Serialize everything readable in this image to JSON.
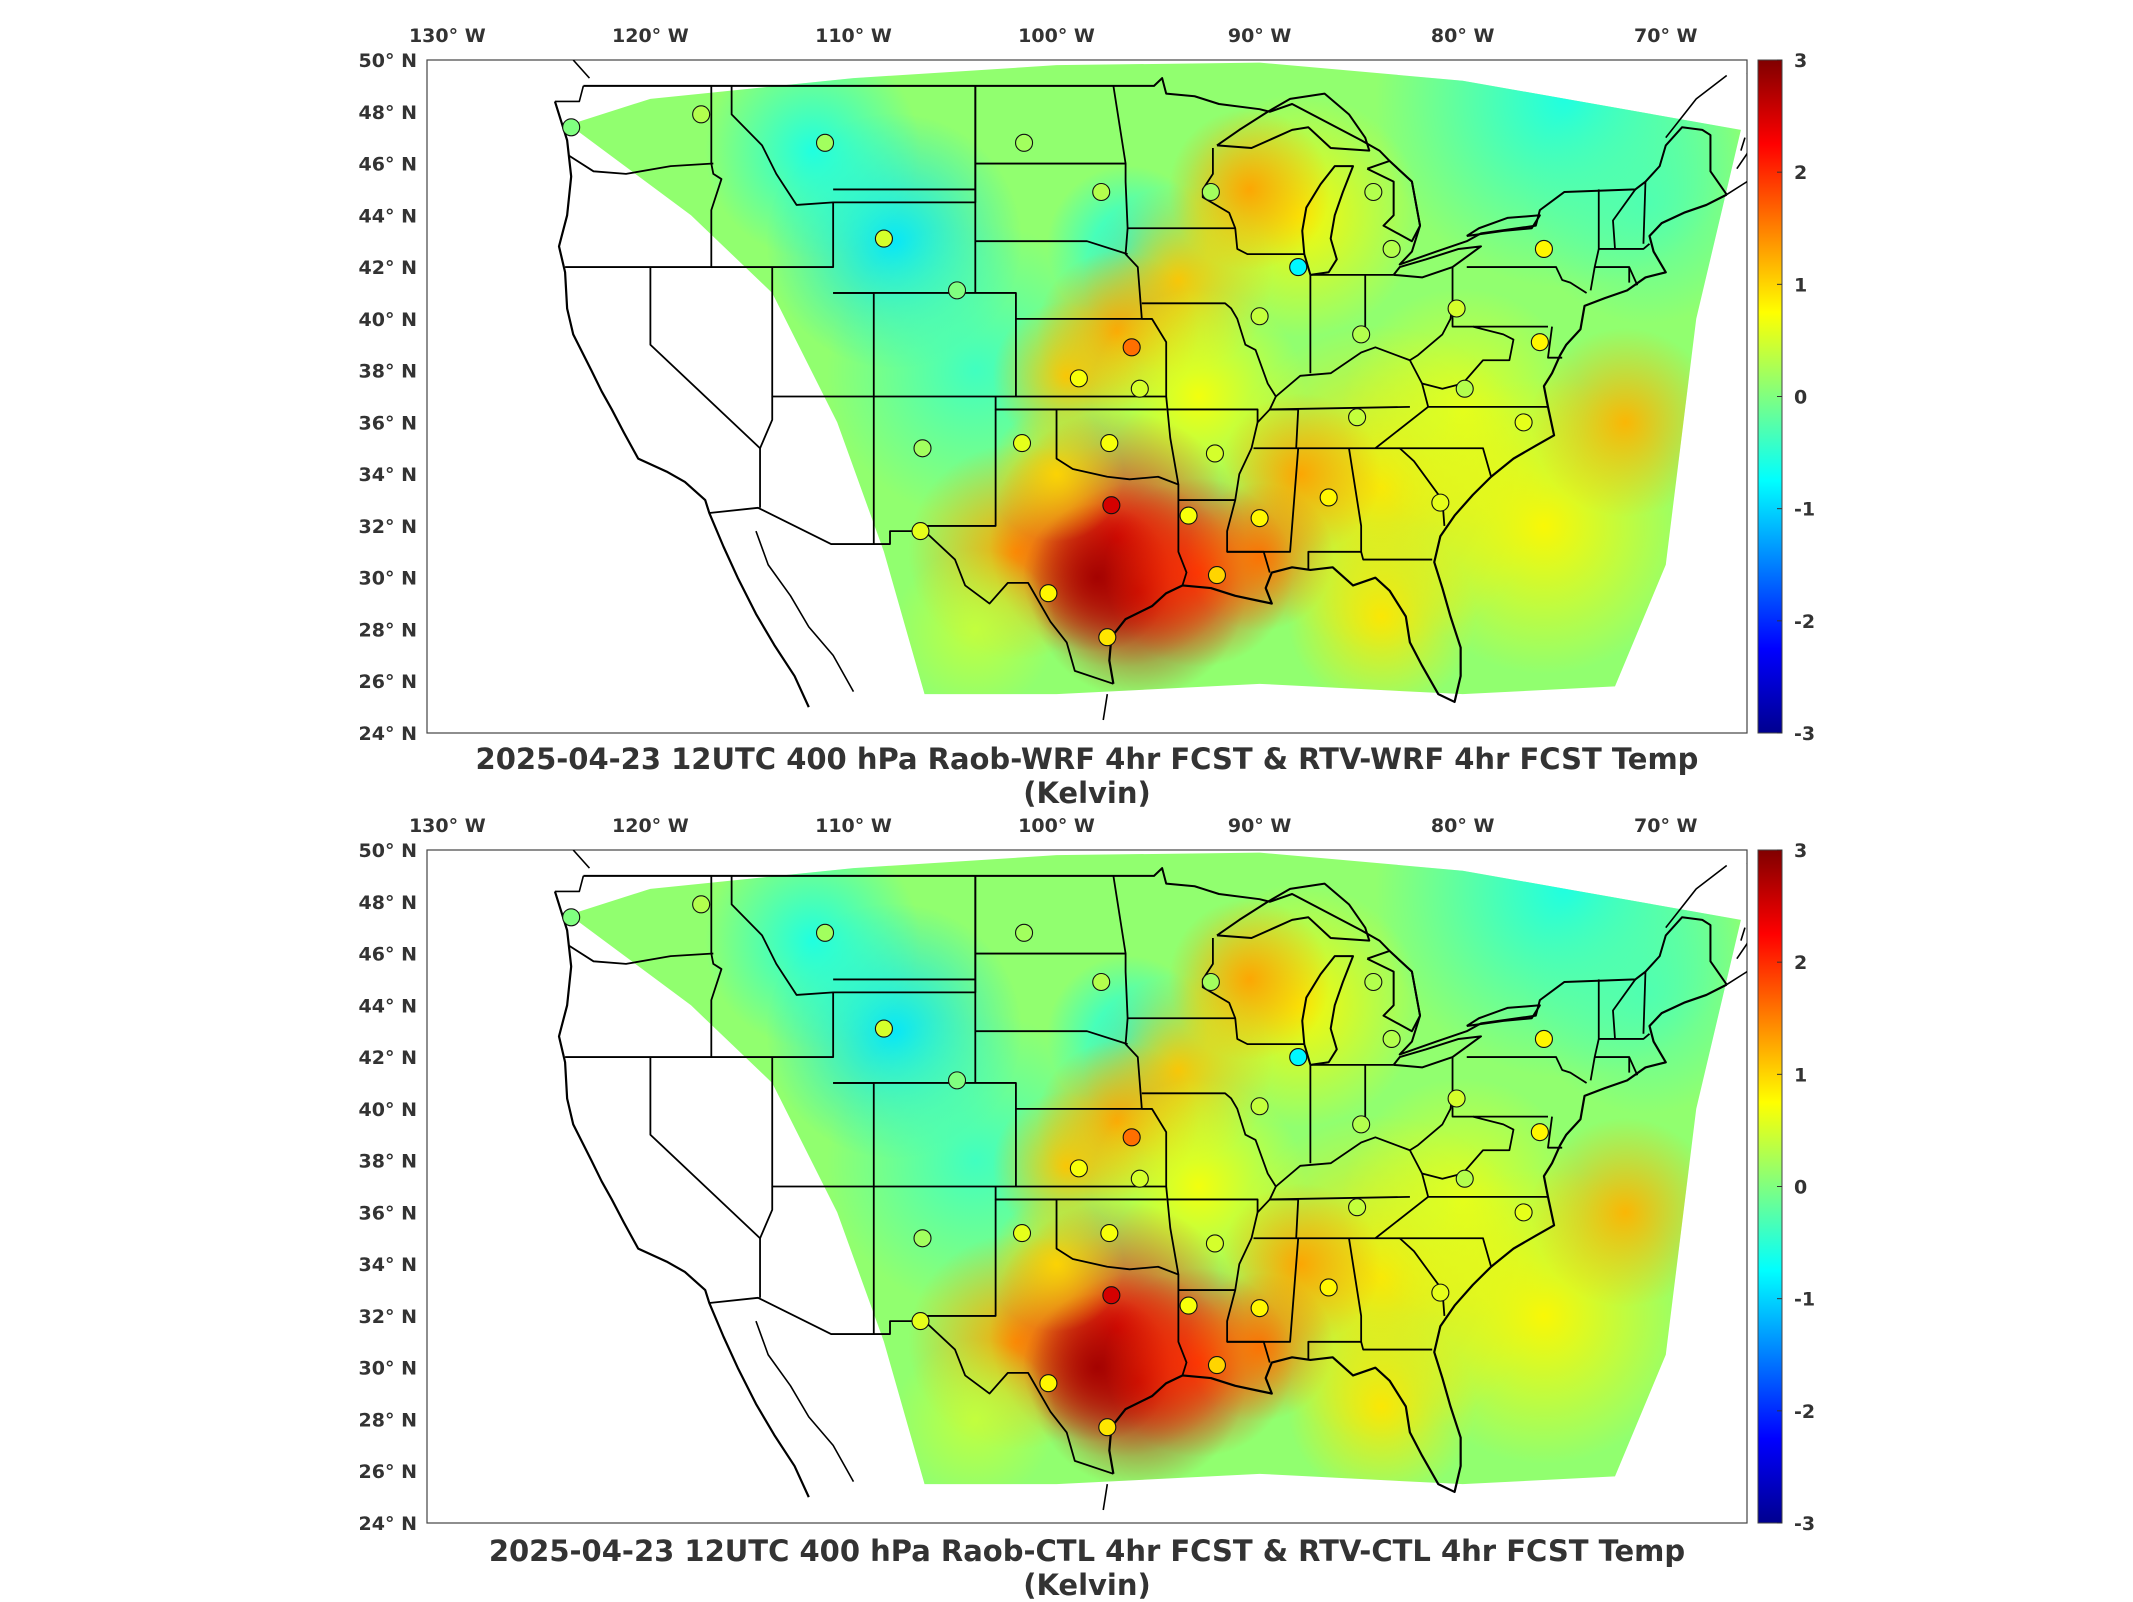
{
  "panels": [
    {
      "title": "2025-04-23 12UTC 400 hPa Raob-WRF 4hr FCST & RTV-WRF 4hr FCST Temp (Kelvin)"
    },
    {
      "title": "2025-04-23 12UTC 400 hPa Raob-CTL 4hr FCST & RTV-CTL 4hr FCST Temp (Kelvin)"
    }
  ],
  "longitude_labels": [
    "130",
    "120",
    "110",
    "100",
    "90",
    "80",
    "70"
  ],
  "longitude_values": [
    -130,
    -120,
    -110,
    -100,
    -90,
    -80,
    -70
  ],
  "longitude_suffix": "W",
  "latitude_labels": [
    "50",
    "48",
    "46",
    "44",
    "42",
    "40",
    "38",
    "36",
    "34",
    "32",
    "30",
    "28",
    "26",
    "24"
  ],
  "latitude_values": [
    50,
    48,
    46,
    44,
    42,
    40,
    38,
    36,
    34,
    32,
    30,
    28,
    26,
    24
  ],
  "latitude_suffix": "N",
  "colorbar": {
    "labels": [
      "3",
      "2",
      "1",
      "0",
      "-1",
      "-2",
      "-3"
    ],
    "values": [
      3,
      2,
      1,
      0,
      -1,
      -2,
      -3
    ],
    "colors": [
      "#00008f",
      "#0000ff",
      "#0080ff",
      "#00ffff",
      "#80ff80",
      "#ffff00",
      "#ff8000",
      "#ff0000",
      "#800000"
    ]
  },
  "map_extent": {
    "lon": [
      -131,
      -66
    ],
    "lat": [
      24,
      50
    ]
  },
  "stations": [
    {
      "lon": -123.9,
      "lat": 47.4,
      "val": 0.0
    },
    {
      "lon": -117.5,
      "lat": 47.9,
      "val": 0.3
    },
    {
      "lon": -111.4,
      "lat": 46.8,
      "val": 0.2
    },
    {
      "lon": -108.5,
      "lat": 43.1,
      "val": 0.5
    },
    {
      "lon": -101.6,
      "lat": 46.8,
      "val": 0.2
    },
    {
      "lon": -97.8,
      "lat": 44.9,
      "val": 0.3
    },
    {
      "lon": -92.4,
      "lat": 44.9,
      "val": 0.2
    },
    {
      "lon": -88.1,
      "lat": 42.0,
      "val": -0.8
    },
    {
      "lon": -84.4,
      "lat": 44.9,
      "val": 0.3
    },
    {
      "lon": -83.5,
      "lat": 42.7,
      "val": 0.3
    },
    {
      "lon": -76.0,
      "lat": 42.7,
      "val": 0.8
    },
    {
      "lon": -104.9,
      "lat": 41.1,
      "val": 0.0
    },
    {
      "lon": -96.3,
      "lat": 38.9,
      "val": 1.6
    },
    {
      "lon": -98.9,
      "lat": 37.7,
      "val": 0.7
    },
    {
      "lon": -95.9,
      "lat": 37.3,
      "val": 0.5
    },
    {
      "lon": -90.0,
      "lat": 40.1,
      "val": 0.4
    },
    {
      "lon": -85.0,
      "lat": 39.4,
      "val": 0.3
    },
    {
      "lon": -80.3,
      "lat": 40.4,
      "val": 0.5
    },
    {
      "lon": -76.2,
      "lat": 39.1,
      "val": 0.8
    },
    {
      "lon": -79.9,
      "lat": 37.3,
      "val": 0.3
    },
    {
      "lon": -77.0,
      "lat": 36.0,
      "val": 0.6
    },
    {
      "lon": -85.2,
      "lat": 36.2,
      "val": 0.4
    },
    {
      "lon": -92.2,
      "lat": 34.8,
      "val": 0.5
    },
    {
      "lon": -97.4,
      "lat": 35.2,
      "val": 0.7
    },
    {
      "lon": -101.7,
      "lat": 35.2,
      "val": 0.6
    },
    {
      "lon": -106.6,
      "lat": 35.0,
      "val": 0.2
    },
    {
      "lon": -97.3,
      "lat": 32.8,
      "val": 2.5
    },
    {
      "lon": -93.5,
      "lat": 32.4,
      "val": 0.7
    },
    {
      "lon": -90.0,
      "lat": 32.3,
      "val": 0.8
    },
    {
      "lon": -86.6,
      "lat": 33.1,
      "val": 0.8
    },
    {
      "lon": -81.1,
      "lat": 32.9,
      "val": 0.6
    },
    {
      "lon": -106.7,
      "lat": 31.8,
      "val": 0.6
    },
    {
      "lon": -92.1,
      "lat": 30.1,
      "val": 1.0
    },
    {
      "lon": -100.4,
      "lat": 29.4,
      "val": 0.8
    },
    {
      "lon": -97.5,
      "lat": 27.7,
      "val": 0.9
    }
  ]
}
